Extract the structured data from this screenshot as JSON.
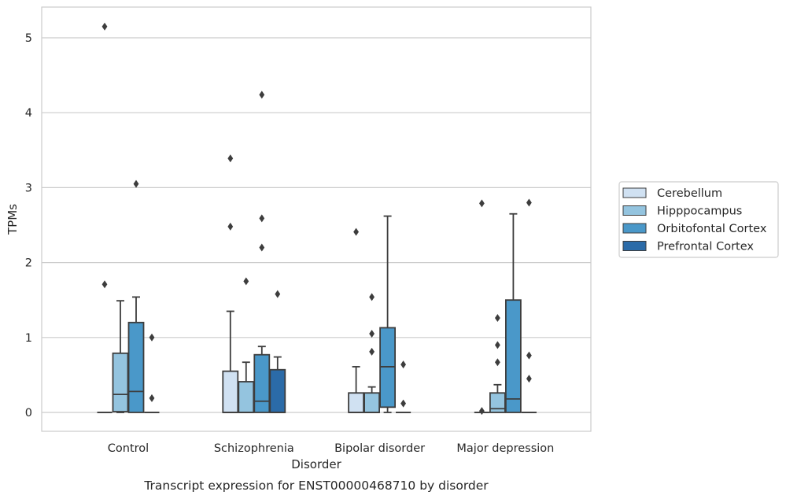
{
  "chart_data": {
    "type": "box",
    "title": "Transcript expression for ENST00000468710 by disorder",
    "xlabel": "Disorder",
    "ylabel": "TPMs",
    "ylim": [
      -0.25,
      5.4
    ],
    "yticks": [
      0,
      1,
      2,
      3,
      4,
      5
    ],
    "categories": [
      "Control",
      "Schizophrenia",
      "Bipolar disorder",
      "Major depression"
    ],
    "legend": {
      "placement": "right"
    },
    "series": [
      {
        "name": "Cerebellum",
        "color": "#d0e1f2",
        "boxes": [
          {
            "q1": 0,
            "median": 0,
            "q3": 0,
            "whislo": 0,
            "whishi": 0,
            "fliers": [
              1.71,
              5.15
            ]
          },
          {
            "q1": 0,
            "median": 0,
            "q3": 0.55,
            "whislo": 0,
            "whishi": 1.35,
            "fliers": [
              2.48,
              3.39
            ]
          },
          {
            "q1": 0,
            "median": 0,
            "q3": 0.26,
            "whislo": 0,
            "whishi": 0.61,
            "fliers": [
              2.41
            ]
          },
          {
            "q1": 0,
            "median": 0,
            "q3": 0,
            "whislo": 0,
            "whishi": 0,
            "fliers": [
              0.02,
              2.79
            ]
          }
        ]
      },
      {
        "name": "Hipppocampus",
        "color": "#94c4df",
        "boxes": [
          {
            "q1": 0.01,
            "median": 0.24,
            "q3": 0.79,
            "whislo": 0,
            "whishi": 1.49,
            "fliers": []
          },
          {
            "q1": 0,
            "median": 0,
            "q3": 0.41,
            "whislo": 0,
            "whishi": 0.67,
            "fliers": [
              1.75
            ]
          },
          {
            "q1": 0,
            "median": 0,
            "q3": 0.26,
            "whislo": 0,
            "whishi": 0.34,
            "fliers": [
              0.81,
              1.05,
              1.54
            ]
          },
          {
            "q1": 0,
            "median": 0.05,
            "q3": 0.26,
            "whislo": 0,
            "whishi": 0.37,
            "fliers": [
              0.67,
              0.9,
              1.26
            ]
          }
        ]
      },
      {
        "name": "Orbitofontal Cortex",
        "color": "#4a98c9",
        "boxes": [
          {
            "q1": 0,
            "median": 0.28,
            "q3": 1.2,
            "whislo": 0,
            "whishi": 1.54,
            "fliers": [
              3.05
            ]
          },
          {
            "q1": 0,
            "median": 0.15,
            "q3": 0.77,
            "whislo": 0,
            "whishi": 0.88,
            "fliers": [
              2.2,
              2.59,
              4.24
            ]
          },
          {
            "q1": 0.07,
            "median": 0.61,
            "q3": 1.13,
            "whislo": 0,
            "whishi": 2.62,
            "fliers": []
          },
          {
            "q1": 0,
            "median": 0.18,
            "q3": 1.5,
            "whislo": 0,
            "whishi": 2.65,
            "fliers": []
          }
        ]
      },
      {
        "name": "Prefrontal Cortex",
        "color": "#2b6ba8",
        "boxes": [
          {
            "q1": 0,
            "median": 0,
            "q3": 0,
            "whislo": 0,
            "whishi": 0,
            "fliers": [
              0.19,
              1.0
            ]
          },
          {
            "q1": 0,
            "median": 0,
            "q3": 0.57,
            "whislo": 0,
            "whishi": 0.74,
            "fliers": [
              1.58
            ]
          },
          {
            "q1": 0,
            "median": 0,
            "q3": 0,
            "whislo": 0,
            "whishi": 0,
            "fliers": [
              0.12,
              0.64
            ]
          },
          {
            "q1": 0,
            "median": 0,
            "q3": 0,
            "whislo": 0,
            "whishi": 0,
            "fliers": [
              0.45,
              0.76,
              2.8
            ]
          }
        ]
      }
    ]
  }
}
